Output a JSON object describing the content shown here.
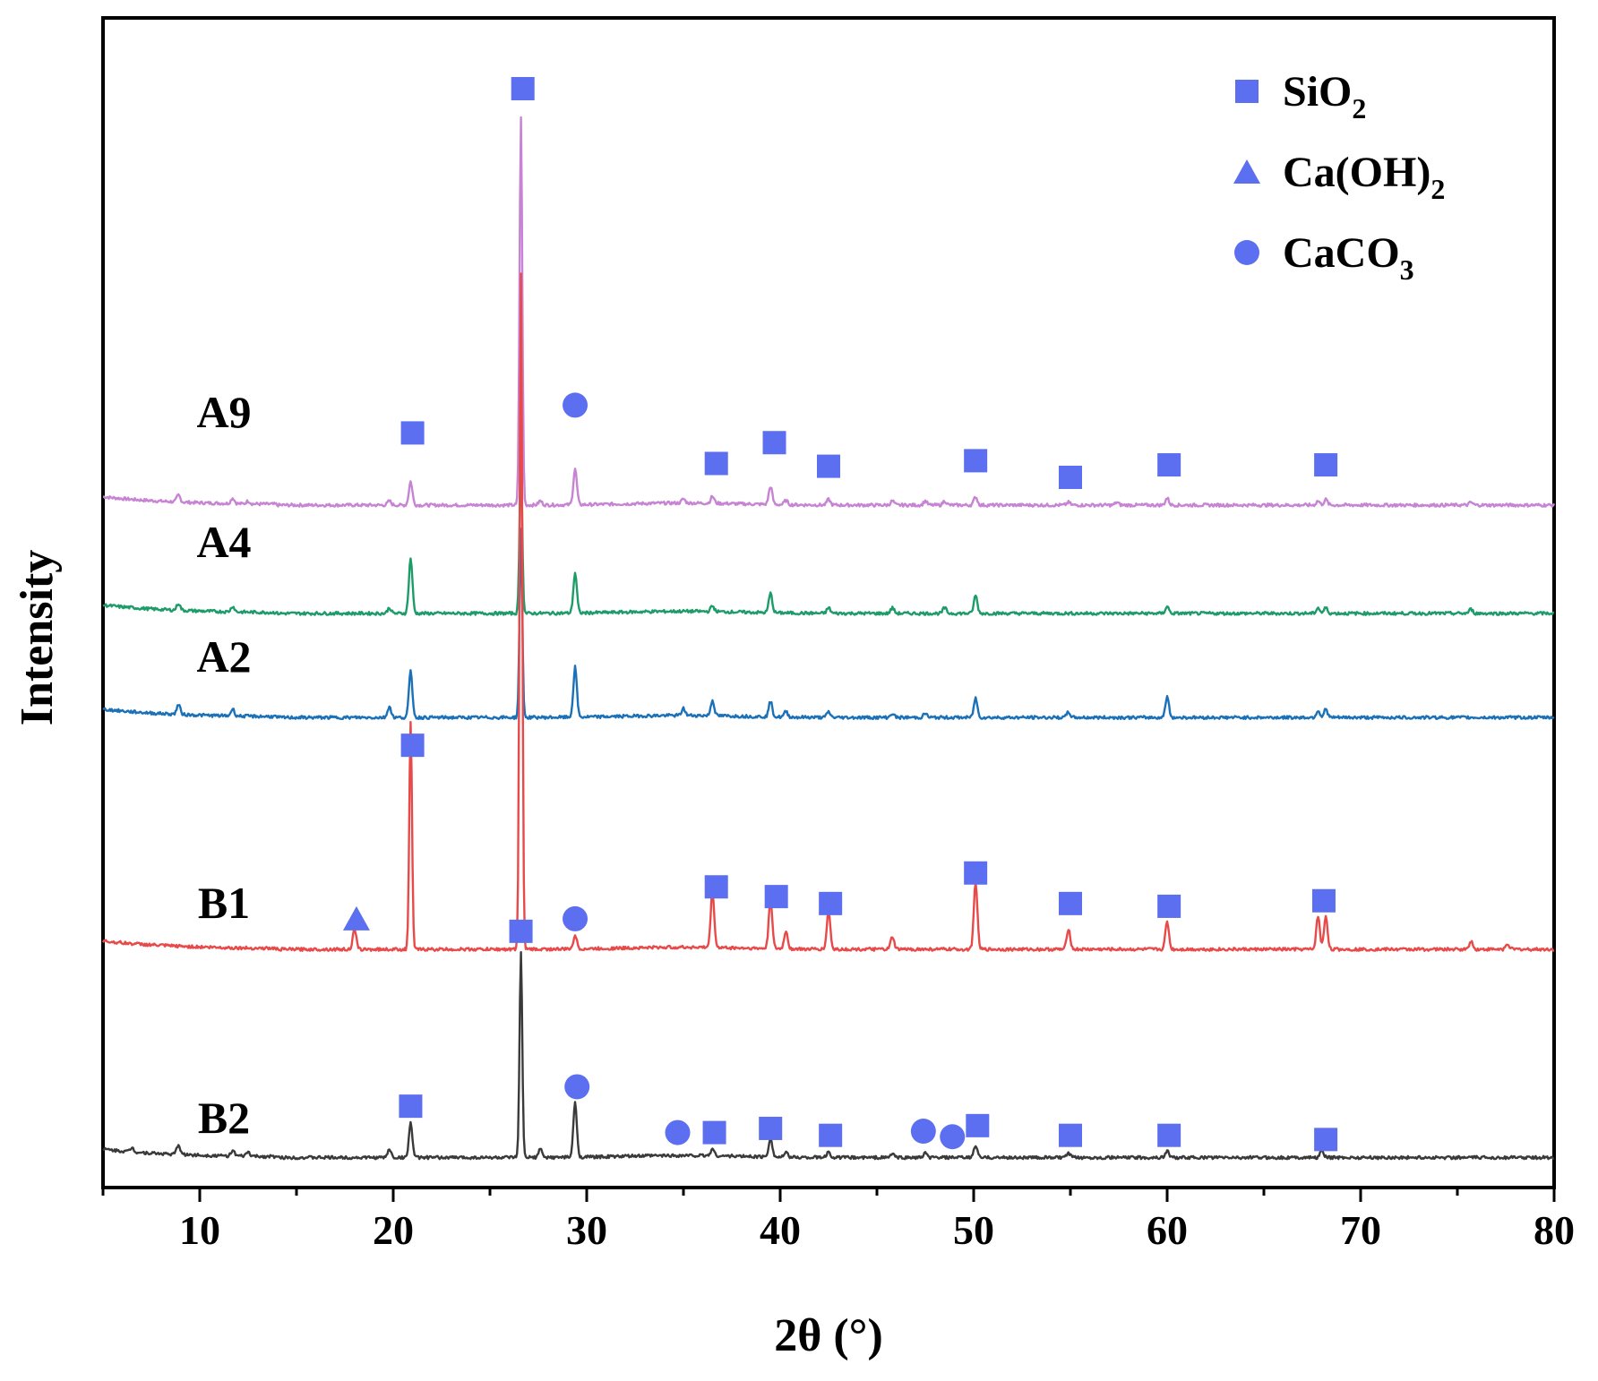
{
  "colors": {
    "marker": "#5b6ff0",
    "axis": "#000000",
    "background": "#ffffff"
  },
  "chart_data": {
    "type": "line",
    "title": "",
    "xlabel": "2θ (°)",
    "ylabel": "Intensity",
    "xlim": [
      5,
      80
    ],
    "xticks": [
      10,
      20,
      30,
      40,
      50,
      60,
      70,
      80
    ],
    "grid": false,
    "legend_position": "top-right",
    "legend": [
      {
        "marker": "square",
        "name": "SiO",
        "sub": "2"
      },
      {
        "marker": "triangle",
        "name": "Ca(OH)",
        "sub": "2"
      },
      {
        "marker": "circle",
        "name": "CaCO",
        "sub": "3"
      }
    ],
    "series": [
      {
        "name": "A9",
        "color": "#c783d4",
        "baseline": 3.2,
        "peaks": [
          [
            8.9,
            0.05
          ],
          [
            11.7,
            0.04
          ],
          [
            12.5,
            0.02
          ],
          [
            19.8,
            0.03
          ],
          [
            20.9,
            0.17
          ],
          [
            26.6,
            2.8
          ],
          [
            27.6,
            0.03
          ],
          [
            29.4,
            0.26
          ],
          [
            35.0,
            0.03
          ],
          [
            36.5,
            0.05
          ],
          [
            39.5,
            0.13
          ],
          [
            40.3,
            0.03
          ],
          [
            42.5,
            0.04
          ],
          [
            45.8,
            0.03
          ],
          [
            47.5,
            0.03
          ],
          [
            48.5,
            0.03
          ],
          [
            50.1,
            0.06
          ],
          [
            54.9,
            0.02
          ],
          [
            57.4,
            0.02
          ],
          [
            60.0,
            0.05
          ],
          [
            67.8,
            0.03
          ],
          [
            68.2,
            0.04
          ],
          [
            75.7,
            0.02
          ]
        ],
        "markers": [
          {
            "type": "square",
            "x": 21.0,
            "y": 3.72
          },
          {
            "type": "square",
            "x": 26.7,
            "y": 6.2
          },
          {
            "type": "circle",
            "x": 29.4,
            "y": 3.92
          },
          {
            "type": "square",
            "x": 36.7,
            "y": 3.5
          },
          {
            "type": "square",
            "x": 39.7,
            "y": 3.65
          },
          {
            "type": "square",
            "x": 42.5,
            "y": 3.48
          },
          {
            "type": "square",
            "x": 50.1,
            "y": 3.52
          },
          {
            "type": "square",
            "x": 55.0,
            "y": 3.4
          },
          {
            "type": "square",
            "x": 60.1,
            "y": 3.49
          },
          {
            "type": "square",
            "x": 68.2,
            "y": 3.49
          }
        ]
      },
      {
        "name": "A4",
        "color": "#1d9c6a",
        "baseline": 2.42,
        "peaks": [
          [
            8.9,
            0.05
          ],
          [
            11.7,
            0.04
          ],
          [
            19.8,
            0.04
          ],
          [
            20.9,
            0.4
          ],
          [
            26.6,
            1.1
          ],
          [
            29.4,
            0.29
          ],
          [
            36.5,
            0.04
          ],
          [
            39.5,
            0.14
          ],
          [
            42.5,
            0.04
          ],
          [
            45.8,
            0.04
          ],
          [
            48.5,
            0.04
          ],
          [
            50.1,
            0.13
          ],
          [
            60.0,
            0.05
          ],
          [
            67.8,
            0.04
          ],
          [
            68.2,
            0.04
          ],
          [
            75.7,
            0.03
          ]
        ],
        "markers": []
      },
      {
        "name": "A2",
        "color": "#1b71b8",
        "baseline": 1.67,
        "peaks": [
          [
            8.9,
            0.07
          ],
          [
            11.7,
            0.05
          ],
          [
            19.8,
            0.08
          ],
          [
            20.9,
            0.33
          ],
          [
            26.6,
            1.35
          ],
          [
            29.4,
            0.36
          ],
          [
            35.0,
            0.05
          ],
          [
            36.5,
            0.11
          ],
          [
            39.5,
            0.11
          ],
          [
            40.3,
            0.04
          ],
          [
            42.5,
            0.04
          ],
          [
            45.8,
            0.03
          ],
          [
            47.5,
            0.03
          ],
          [
            50.1,
            0.14
          ],
          [
            54.9,
            0.04
          ],
          [
            60.0,
            0.15
          ],
          [
            67.8,
            0.05
          ],
          [
            68.2,
            0.06
          ]
        ],
        "markers": []
      },
      {
        "name": "B1",
        "color": "#e84a4a",
        "baseline": 0.0,
        "peaks": [
          [
            18.0,
            0.14
          ],
          [
            20.9,
            1.64
          ],
          [
            26.6,
            4.87
          ],
          [
            29.4,
            0.1
          ],
          [
            36.5,
            0.4
          ],
          [
            39.5,
            0.36
          ],
          [
            40.3,
            0.13
          ],
          [
            42.5,
            0.27
          ],
          [
            45.8,
            0.09
          ],
          [
            50.1,
            0.49
          ],
          [
            54.9,
            0.15
          ],
          [
            60.0,
            0.2
          ],
          [
            67.8,
            0.24
          ],
          [
            68.2,
            0.24
          ],
          [
            75.7,
            0.06
          ],
          [
            77.6,
            0.04
          ]
        ],
        "markers": [
          {
            "type": "triangle",
            "x": 18.1,
            "y": 0.22
          },
          {
            "type": "square",
            "x": 21.0,
            "y": 1.47
          },
          {
            "type": "circle",
            "x": 29.4,
            "y": 0.22
          },
          {
            "type": "square",
            "x": 36.7,
            "y": 0.45
          },
          {
            "type": "square",
            "x": 39.8,
            "y": 0.38
          },
          {
            "type": "square",
            "x": 42.6,
            "y": 0.33
          },
          {
            "type": "square",
            "x": 50.1,
            "y": 0.55
          },
          {
            "type": "square",
            "x": 55.0,
            "y": 0.33
          },
          {
            "type": "square",
            "x": 60.1,
            "y": 0.31
          },
          {
            "type": "square",
            "x": 68.1,
            "y": 0.35
          }
        ]
      },
      {
        "name": "B2",
        "color": "#3a3a3a",
        "baseline": -1.5,
        "peaks": [
          [
            6.5,
            0.03
          ],
          [
            8.9,
            0.07
          ],
          [
            11.7,
            0.04
          ],
          [
            12.5,
            0.03
          ],
          [
            19.8,
            0.06
          ],
          [
            20.9,
            0.25
          ],
          [
            26.6,
            1.47
          ],
          [
            27.6,
            0.06
          ],
          [
            29.4,
            0.39
          ],
          [
            36.5,
            0.05
          ],
          [
            39.5,
            0.14
          ],
          [
            40.3,
            0.03
          ],
          [
            42.5,
            0.04
          ],
          [
            45.8,
            0.03
          ],
          [
            47.5,
            0.03
          ],
          [
            50.1,
            0.09
          ],
          [
            54.9,
            0.03
          ],
          [
            60.0,
            0.05
          ],
          [
            68.0,
            0.05
          ]
        ],
        "markers": [
          {
            "type": "square",
            "x": 20.9,
            "y": -1.13
          },
          {
            "type": "square",
            "x": 26.6,
            "y": 0.13
          },
          {
            "type": "circle",
            "x": 29.5,
            "y": -0.99
          },
          {
            "type": "circle",
            "x": 34.7,
            "y": -1.32
          },
          {
            "type": "square",
            "x": 36.6,
            "y": -1.32
          },
          {
            "type": "square",
            "x": 39.5,
            "y": -1.29
          },
          {
            "type": "square",
            "x": 42.6,
            "y": -1.34
          },
          {
            "type": "circle",
            "x": 47.4,
            "y": -1.31
          },
          {
            "type": "circle",
            "x": 48.9,
            "y": -1.35
          },
          {
            "type": "square",
            "x": 50.2,
            "y": -1.27
          },
          {
            "type": "square",
            "x": 55.0,
            "y": -1.34
          },
          {
            "type": "square",
            "x": 60.1,
            "y": -1.34
          },
          {
            "type": "square",
            "x": 68.2,
            "y": -1.37
          }
        ]
      }
    ]
  }
}
